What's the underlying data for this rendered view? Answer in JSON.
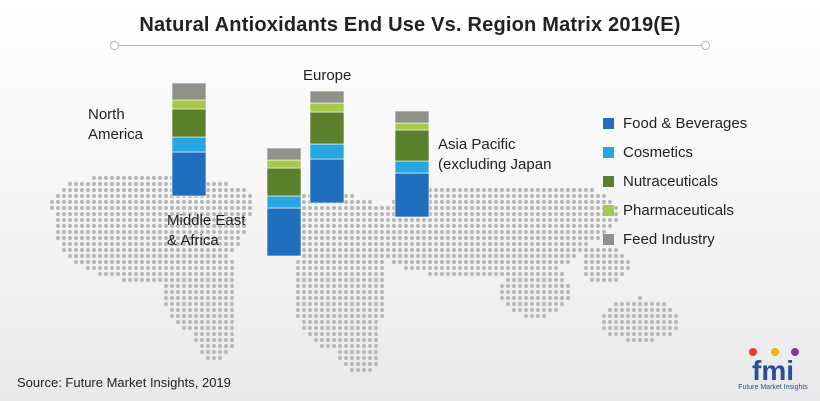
{
  "title": "Natural Antioxidants End Use Vs. Region Matrix 2019(E)",
  "source": "Source: Future Market Insights, 2019",
  "logo": {
    "mark": "fmi",
    "tagline": "Future Market Insights"
  },
  "colors": {
    "food_beverages": "#1f6fbe",
    "cosmetics": "#26a7e1",
    "nutraceuticals": "#5b7f2b",
    "pharmaceuticals": "#a6c94a",
    "feed_industry": "#8e9288",
    "map_dots": "#b9b9b9"
  },
  "chart_data": {
    "type": "bar",
    "stacked": true,
    "categories": [
      "North America",
      "Europe",
      "Middle East & Africa",
      "Asia Pacific (excluding Japan"
    ],
    "region_labels": [
      "North\nAmerica",
      "Europe",
      "Middle East\n& Africa",
      "Asia Pacific\n(excluding Japan"
    ],
    "series": [
      {
        "name": "Food & Beverages",
        "values": [
          44,
          44,
          48,
          44
        ]
      },
      {
        "name": "Cosmetics",
        "values": [
          15,
          15,
          12,
          12
        ]
      },
      {
        "name": "Nutraceuticals",
        "values": [
          28,
          32,
          28,
          31
        ]
      },
      {
        "name": "Pharmaceuticals",
        "values": [
          9,
          9,
          8,
          7
        ]
      },
      {
        "name": "Feed Industry",
        "values": [
          17,
          12,
          12,
          12
        ]
      }
    ],
    "legend": [
      "Food & Beverages",
      "Cosmetics",
      "Nutraceuticals",
      "Pharmaceuticals",
      "Feed Industry"
    ],
    "legend_position": "right",
    "axes_shown": false
  }
}
